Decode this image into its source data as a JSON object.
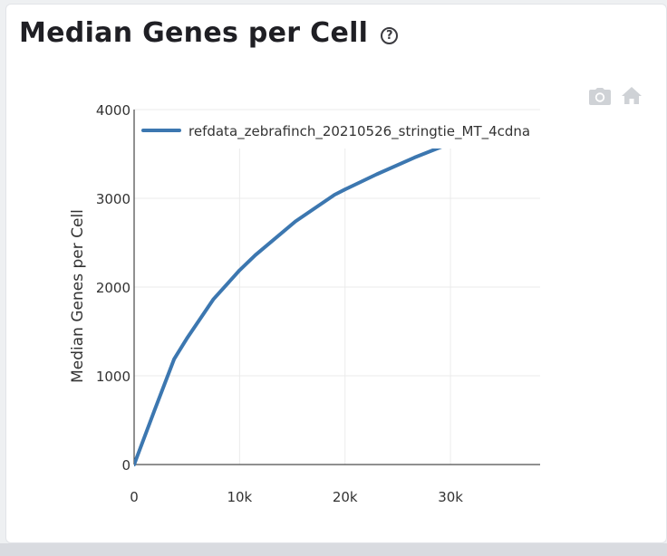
{
  "header": {
    "title": "Median Genes per Cell",
    "help_icon": "question-circle-icon"
  },
  "modebar": {
    "icons": [
      "camera-icon",
      "home-icon"
    ]
  },
  "colors": {
    "series": "#3c77b0",
    "grid": "#ebebeb",
    "axis": "#222222",
    "text": "#333333"
  },
  "chart_data": {
    "type": "line",
    "title": "",
    "xlabel": "",
    "ylabel": "Median Genes per Cell",
    "xlim": [
      0,
      38500
    ],
    "ylim": [
      0,
      4000
    ],
    "x_ticks": [
      0,
      10000,
      20000,
      30000
    ],
    "x_tick_labels": [
      "0",
      "10k",
      "20k",
      "30k"
    ],
    "y_ticks": [
      0,
      1000,
      2000,
      3000,
      4000
    ],
    "y_tick_labels": [
      "0",
      "1000",
      "2000",
      "3000",
      "4000"
    ],
    "grid": true,
    "legend_position": "top",
    "series": [
      {
        "name": "refdata_zebrafinch_20210526_stringtie_MT_4cdna",
        "x": [
          0,
          1900,
          3800,
          5000,
          7500,
          10000,
          11500,
          15300,
          19000,
          20000,
          23000,
          26600,
          30000,
          31000
        ],
        "y": [
          0,
          600,
          1190,
          1420,
          1860,
          2190,
          2360,
          2740,
          3040,
          3100,
          3270,
          3460,
          3620,
          3650
        ]
      }
    ]
  }
}
